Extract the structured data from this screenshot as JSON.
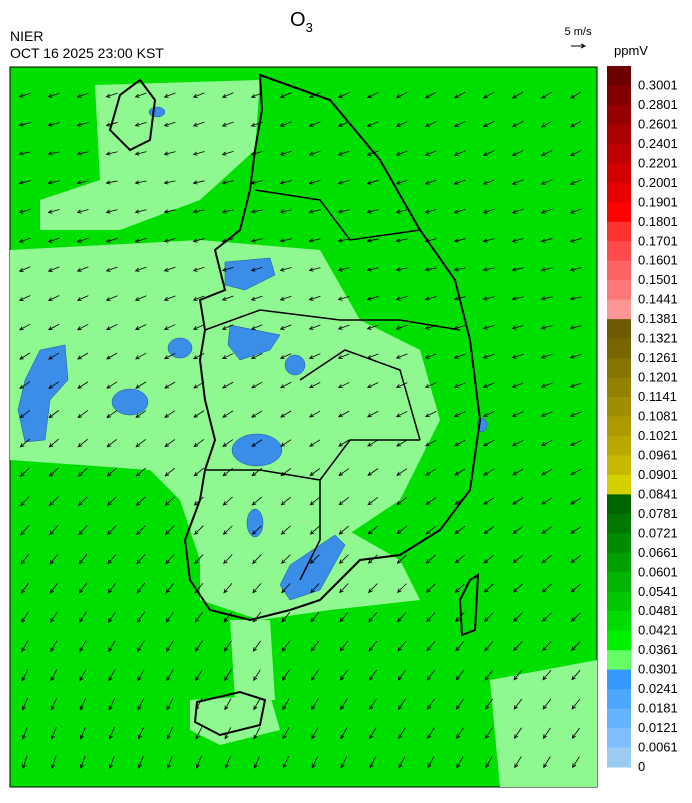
{
  "header": {
    "title": "O",
    "title_sub": "3",
    "agency": "NIER",
    "datetime": "OCT 16 2025 23:00 KST"
  },
  "wind_legend": {
    "label": "5 m/s"
  },
  "colorbar": {
    "unit": "ppmV",
    "labels": [
      "0.3001",
      "0.2801",
      "0.2601",
      "0.2401",
      "0.2201",
      "0.2001",
      "0.1901",
      "0.1801",
      "0.1701",
      "0.1601",
      "0.1501",
      "0.1441",
      "0.1381",
      "0.1321",
      "0.1261",
      "0.1201",
      "0.1141",
      "0.1081",
      "0.1021",
      "0.0961",
      "0.0901",
      "0.0841",
      "0.0781",
      "0.0721",
      "0.0661",
      "0.0601",
      "0.0541",
      "0.0481",
      "0.0421",
      "0.0361",
      "0.0301",
      "0.0241",
      "0.0181",
      "0.0121",
      "0.0061",
      "0"
    ],
    "colors": [
      "#6e0000",
      "#820000",
      "#960000",
      "#aa0000",
      "#be0000",
      "#d20000",
      "#e60000",
      "#ff0000",
      "#ff3232",
      "#ff4b4b",
      "#ff6464",
      "#ff7878",
      "#ff9696",
      "#6e5a00",
      "#7a6600",
      "#867300",
      "#938000",
      "#a08d00",
      "#ad9a00",
      "#baa800",
      "#c8b800",
      "#d6d000",
      "#006400",
      "#007800",
      "#008c00",
      "#00a000",
      "#00b400",
      "#00c800",
      "#00dc00",
      "#00f000",
      "#64ff64",
      "#3399ff",
      "#4da6ff",
      "#66b3ff",
      "#80bfff",
      "#99ccee"
    ]
  }
}
